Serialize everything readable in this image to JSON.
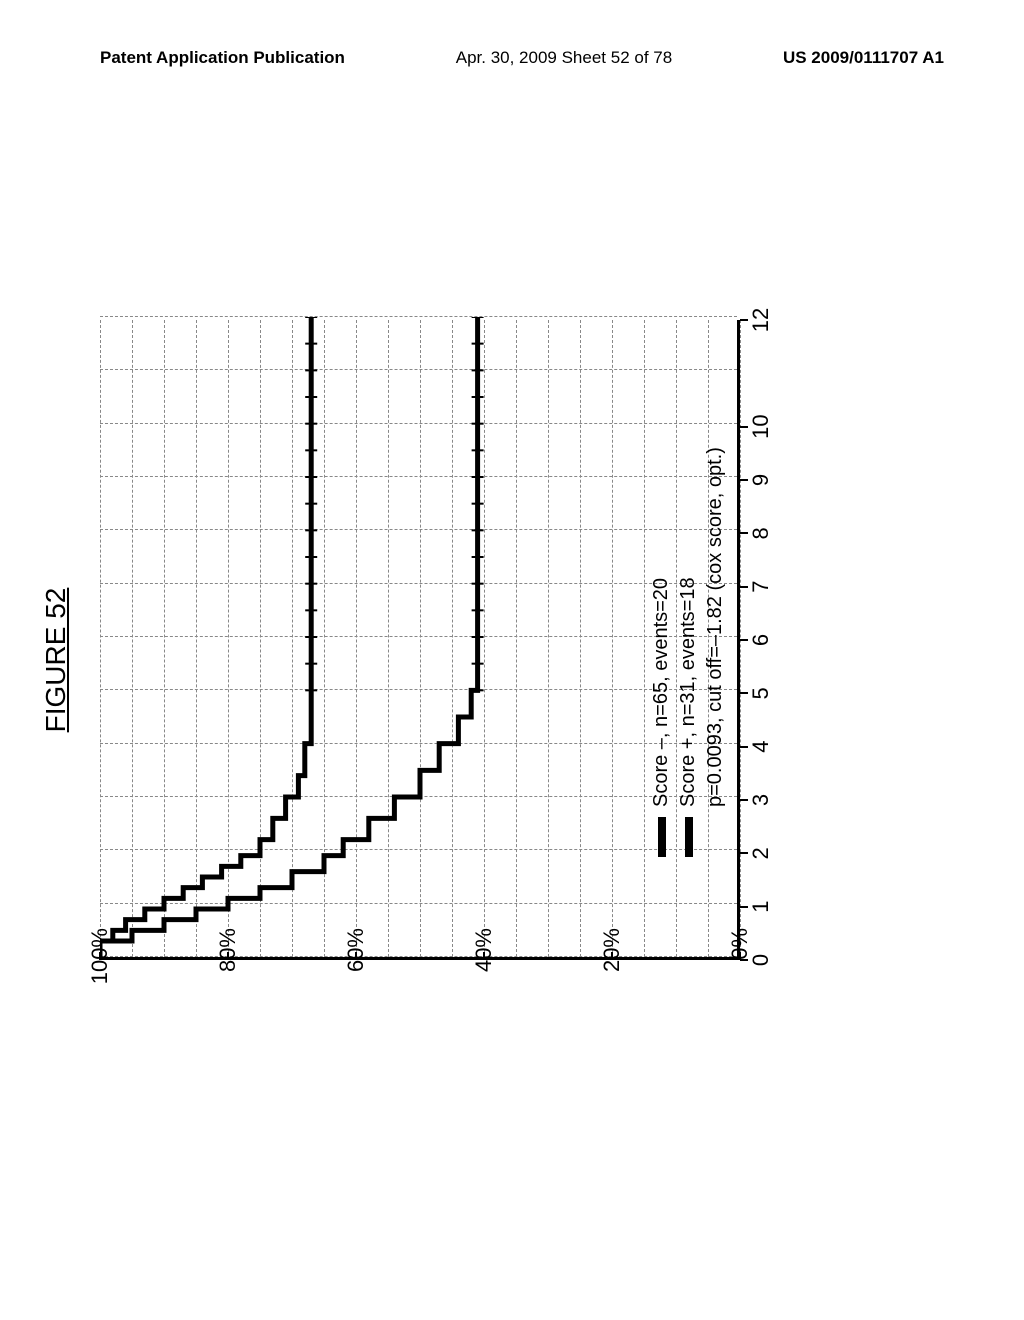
{
  "header": {
    "left": "Patent Application Publication",
    "center": "Apr. 30, 2009  Sheet 52 of 78",
    "right": "US 2009/0111707 A1"
  },
  "figure": {
    "title": "FIGURE 52",
    "type": "kaplan-meier",
    "y_label_suffix": "%",
    "y_ticks": [
      0,
      20,
      40,
      60,
      80,
      100
    ],
    "x_ticks": [
      0,
      1,
      2,
      3,
      4,
      5,
      6,
      7,
      8,
      9,
      10,
      12
    ],
    "x_min": 0,
    "x_max": 12,
    "y_min": 0,
    "y_max": 100,
    "grid_v_step": 1,
    "grid_h_step": 5,
    "grid_color": "#888888",
    "line_color": "#000000",
    "line_width": 5,
    "background_color": "#ffffff",
    "legend": [
      "Score –, n=65, events=20",
      "Score +, n=31, events=18",
      "p=0.0093, cut off=–1.82 (cox score, opt.)"
    ],
    "series": [
      {
        "name": "score-minus",
        "points": [
          [
            0,
            100
          ],
          [
            0.3,
            98
          ],
          [
            0.5,
            96
          ],
          [
            0.7,
            93
          ],
          [
            0.9,
            90
          ],
          [
            1.1,
            87
          ],
          [
            1.3,
            84
          ],
          [
            1.5,
            81
          ],
          [
            1.7,
            78
          ],
          [
            1.9,
            75
          ],
          [
            2.2,
            73
          ],
          [
            2.6,
            71
          ],
          [
            3.0,
            69
          ],
          [
            3.4,
            68
          ],
          [
            4.0,
            67
          ],
          [
            5.0,
            67
          ],
          [
            6.0,
            67
          ],
          [
            7.0,
            67
          ],
          [
            8.0,
            67
          ],
          [
            9.0,
            67
          ],
          [
            10.0,
            67
          ],
          [
            11.0,
            67
          ],
          [
            12.0,
            67
          ]
        ]
      },
      {
        "name": "score-plus",
        "points": [
          [
            0,
            100
          ],
          [
            0.3,
            95
          ],
          [
            0.5,
            90
          ],
          [
            0.7,
            85
          ],
          [
            0.9,
            80
          ],
          [
            1.1,
            75
          ],
          [
            1.3,
            70
          ],
          [
            1.6,
            65
          ],
          [
            1.9,
            62
          ],
          [
            2.2,
            58
          ],
          [
            2.6,
            54
          ],
          [
            3.0,
            50
          ],
          [
            3.5,
            47
          ],
          [
            4.0,
            44
          ],
          [
            4.5,
            42
          ],
          [
            5.0,
            41
          ],
          [
            6.0,
            41
          ],
          [
            7.0,
            41
          ],
          [
            8.0,
            41
          ],
          [
            9.0,
            41
          ],
          [
            10.0,
            41
          ],
          [
            11.0,
            41
          ],
          [
            12.0,
            41
          ]
        ]
      }
    ]
  }
}
